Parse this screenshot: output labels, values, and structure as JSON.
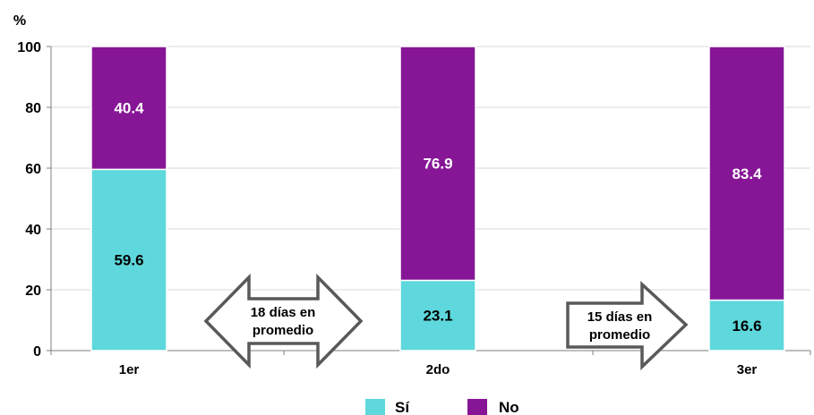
{
  "chart_data": {
    "type": "bar",
    "stacked": true,
    "ylabel": "%",
    "ylim": [
      0,
      100
    ],
    "yticks": [
      "0",
      "20",
      "40",
      "60",
      "80",
      "100"
    ],
    "grid": true,
    "legend_position": "bottom",
    "categories": [
      "1er",
      "2do",
      "3er"
    ],
    "series": [
      {
        "name": "Sí",
        "color": "#5ED8DC",
        "values": [
          59.6,
          23.1,
          16.6
        ],
        "labels": [
          "59.6",
          "23.1",
          "16.6"
        ]
      },
      {
        "name": "No",
        "color": "#861696",
        "values": [
          40.4,
          76.9,
          83.4
        ],
        "labels": [
          "40.4",
          "76.9",
          "83.4"
        ]
      }
    ],
    "annotations": [
      {
        "type": "double-arrow",
        "lines": [
          "18 días en",
          "promedio"
        ]
      },
      {
        "type": "right-arrow",
        "lines": [
          "15 días en",
          "promedio"
        ]
      }
    ]
  }
}
